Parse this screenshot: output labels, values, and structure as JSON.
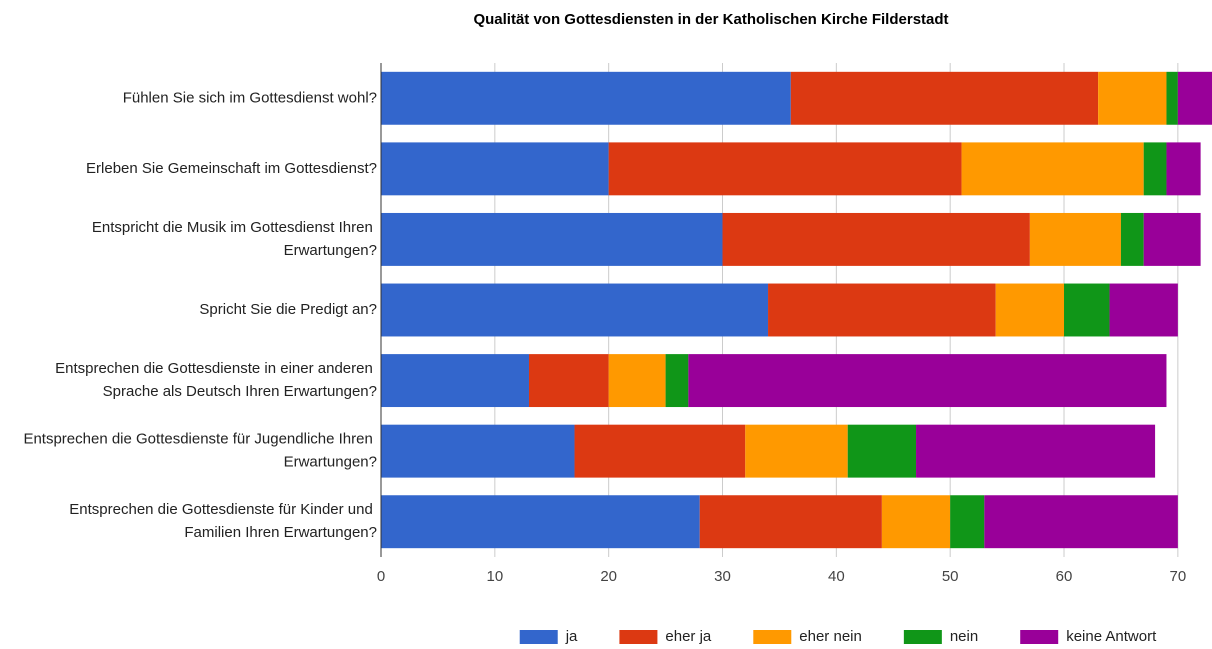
{
  "chart_data": {
    "type": "stacked_barh",
    "title": "Qualität von Gottesdiensten in der Katholischen Kirche Filderstadt",
    "categories": [
      "Fühlen Sie sich im Gottesdienst wohl?",
      "Erleben Sie Gemeinschaft im Gottesdienst?",
      "Entspricht die Musik im Gottesdienst Ihren Erwartungen?",
      "Spricht Sie die Predigt an?",
      "Entsprechen die Gottesdienste in einer anderen Sprache als Deutsch Ihren Erwartungen?",
      "Entsprechen die Gottesdienste für Jugendliche Ihren Erwartungen?",
      "Entsprechen die Gottesdienste für Kinder und Familien Ihren Erwartungen?"
    ],
    "series": [
      {
        "name": "ja",
        "color": "#3366cc",
        "values": [
          36,
          20,
          30,
          34,
          13,
          17,
          28
        ]
      },
      {
        "name": "eher ja",
        "color": "#dc3912",
        "values": [
          27,
          31,
          27,
          20,
          7,
          15,
          16
        ]
      },
      {
        "name": "eher nein",
        "color": "#ff9900",
        "values": [
          6,
          16,
          8,
          6,
          5,
          9,
          6
        ]
      },
      {
        "name": "nein",
        "color": "#109618",
        "values": [
          1,
          2,
          2,
          4,
          2,
          6,
          3
        ]
      },
      {
        "name": "keine Antwort",
        "color": "#990099",
        "values": [
          3,
          3,
          5,
          6,
          42,
          21,
          17
        ]
      }
    ],
    "xlim": [
      0,
      73
    ],
    "xticks": [
      0,
      10,
      20,
      30,
      40,
      50,
      60,
      70
    ],
    "grid": true,
    "legend": "bottom"
  }
}
